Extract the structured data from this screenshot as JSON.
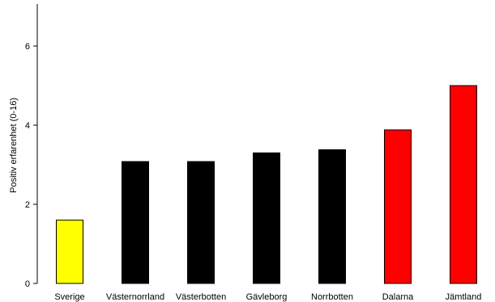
{
  "chart_data": {
    "type": "bar",
    "title": "",
    "xlabel": "",
    "ylabel": "Positiv erfarenhet (0-16)",
    "ylim": [
      0,
      7
    ],
    "yticks": [
      0,
      2,
      4,
      6
    ],
    "grid": false,
    "categories": [
      "Sverige",
      "Västernorrland",
      "Västerbotten",
      "Gävleborg",
      "Norrbotten",
      "Dalarna",
      "Jämtland"
    ],
    "values": [
      1.6,
      3.08,
      3.08,
      3.3,
      3.38,
      3.88,
      5.0
    ],
    "colors": [
      "#ffff00",
      "#000000",
      "#000000",
      "#000000",
      "#000000",
      "#ff0000",
      "#ff0000"
    ]
  }
}
